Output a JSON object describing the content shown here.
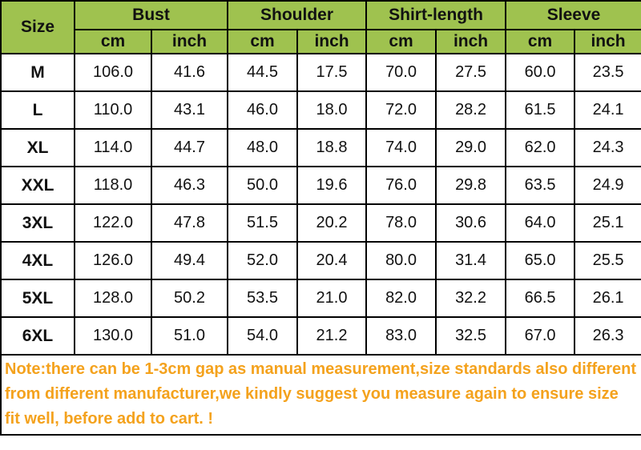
{
  "header": {
    "size": "Size",
    "groups": [
      "Bust",
      "Shoulder",
      "Shirt-length",
      "Sleeve"
    ],
    "units": [
      "cm",
      "inch",
      "cm",
      "inch",
      "cm",
      "inch",
      "cm",
      "inch"
    ]
  },
  "table": {
    "rows": [
      [
        "M",
        "106.0",
        "41.6",
        "44.5",
        "17.5",
        "70.0",
        "27.5",
        "60.0",
        "23.5"
      ],
      [
        "L",
        "110.0",
        "43.1",
        "46.0",
        "18.0",
        "72.0",
        "28.2",
        "61.5",
        "24.1"
      ],
      [
        "XL",
        "114.0",
        "44.7",
        "48.0",
        "18.8",
        "74.0",
        "29.0",
        "62.0",
        "24.3"
      ],
      [
        "XXL",
        "118.0",
        "46.3",
        "50.0",
        "19.6",
        "76.0",
        "29.8",
        "63.5",
        "24.9"
      ],
      [
        "3XL",
        "122.0",
        "47.8",
        "51.5",
        "20.2",
        "78.0",
        "30.6",
        "64.0",
        "25.1"
      ],
      [
        "4XL",
        "126.0",
        "49.4",
        "52.0",
        "20.4",
        "80.0",
        "31.4",
        "65.0",
        "25.5"
      ],
      [
        "5XL",
        "128.0",
        "50.2",
        "53.5",
        "21.0",
        "82.0",
        "32.2",
        "66.5",
        "26.1"
      ],
      [
        "6XL",
        "130.0",
        "51.0",
        "54.0",
        "21.2",
        "83.0",
        "32.5",
        "67.0",
        "26.3"
      ]
    ]
  },
  "note": "Note:there can be 1-3cm gap as manual measurement,size standards also different from different manufacturer,we kindly suggest you measure again to ensure size fit well, before add to cart. !"
}
